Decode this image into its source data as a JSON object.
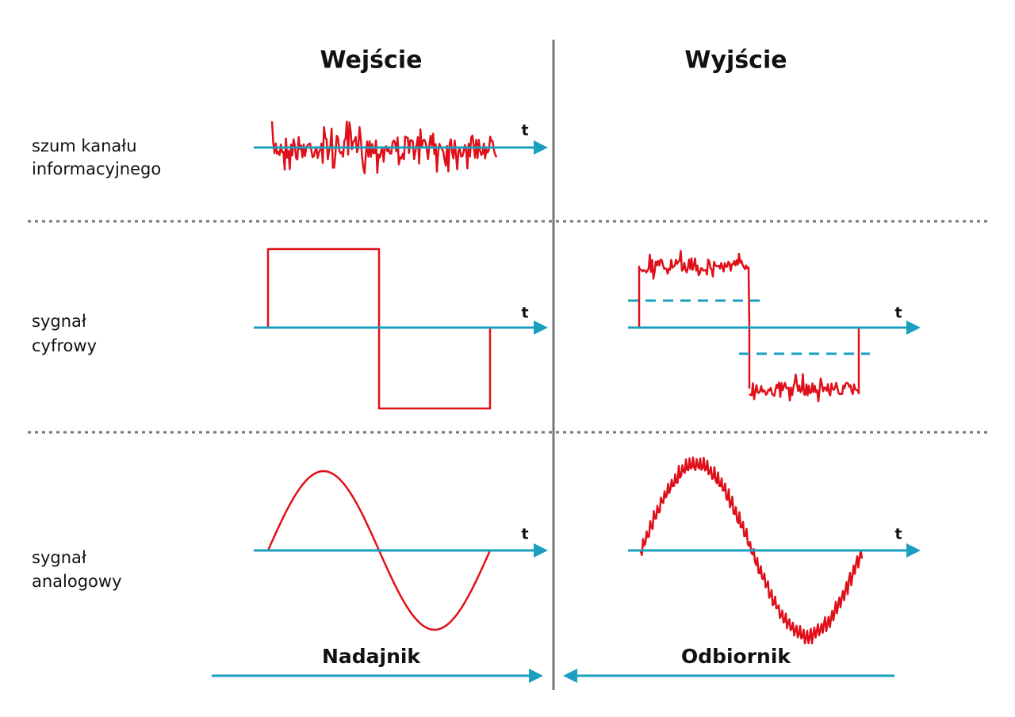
{
  "columns": [
    "Wejście",
    "Wyjście"
  ],
  "rows": [
    {
      "label": [
        "szum kanału",
        "informacyjnego"
      ]
    },
    {
      "label": [
        "sygnał",
        "cyfrowy"
      ]
    },
    {
      "label": [
        "sygnał",
        "analogowy"
      ]
    }
  ],
  "axis_label": "t",
  "footer": [
    "Nadajnik",
    "Odbiornik"
  ]
}
